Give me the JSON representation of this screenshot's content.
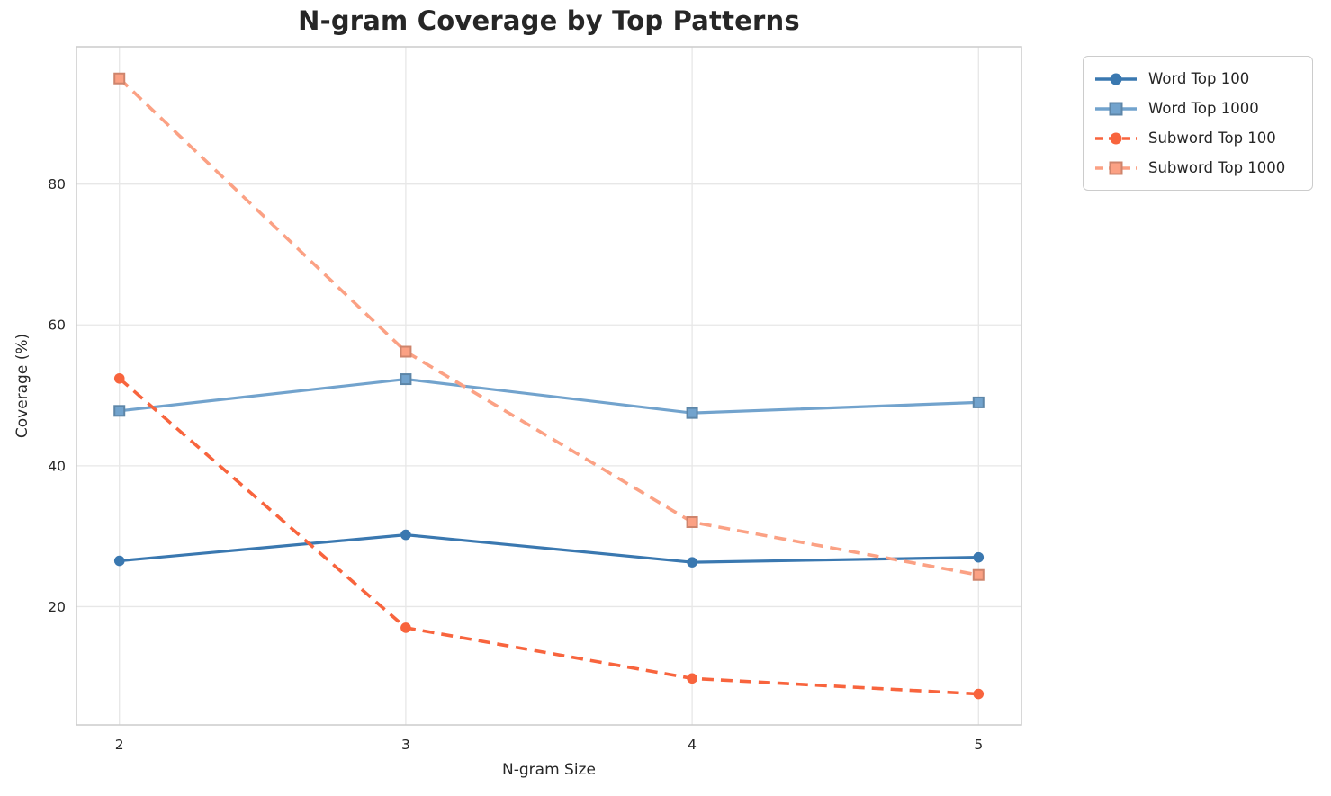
{
  "title": "N-gram Coverage by Top Patterns",
  "chart_data": {
    "type": "line",
    "title": "N-gram Coverage by Top Patterns",
    "xlabel": "N-gram Size",
    "ylabel": "Coverage (%)",
    "x": [
      2,
      3,
      4,
      5
    ],
    "xticks": [
      2,
      3,
      4,
      5
    ],
    "yticks": [
      20,
      40,
      60,
      80
    ],
    "xlim": [
      1.85,
      5.15
    ],
    "ylim": [
      3.2,
      99.5
    ],
    "grid": true,
    "legend_position": "outside-top-right",
    "series": [
      {
        "name": "Word Top 100",
        "values": [
          26.5,
          30.2,
          26.3,
          27.0
        ],
        "color": "#3a78b0",
        "marker": "circle",
        "line_style": "solid"
      },
      {
        "name": "Word Top 1000",
        "values": [
          47.8,
          52.3,
          47.5,
          49.0
        ],
        "color": "#72a3cd",
        "marker": "square",
        "line_style": "solid"
      },
      {
        "name": "Subword Top 100",
        "values": [
          52.4,
          17.0,
          9.8,
          7.6
        ],
        "color": "#f8643d",
        "marker": "circle",
        "line_style": "dashed"
      },
      {
        "name": "Subword Top 1000",
        "values": [
          95.0,
          56.2,
          32.0,
          24.5
        ],
        "color": "#fba184",
        "marker": "square",
        "line_style": "dashed"
      }
    ]
  },
  "colors": {
    "grid": "#e7e7e7",
    "spine": "#cccccc",
    "text": "#262626",
    "background": "#ffffff"
  }
}
